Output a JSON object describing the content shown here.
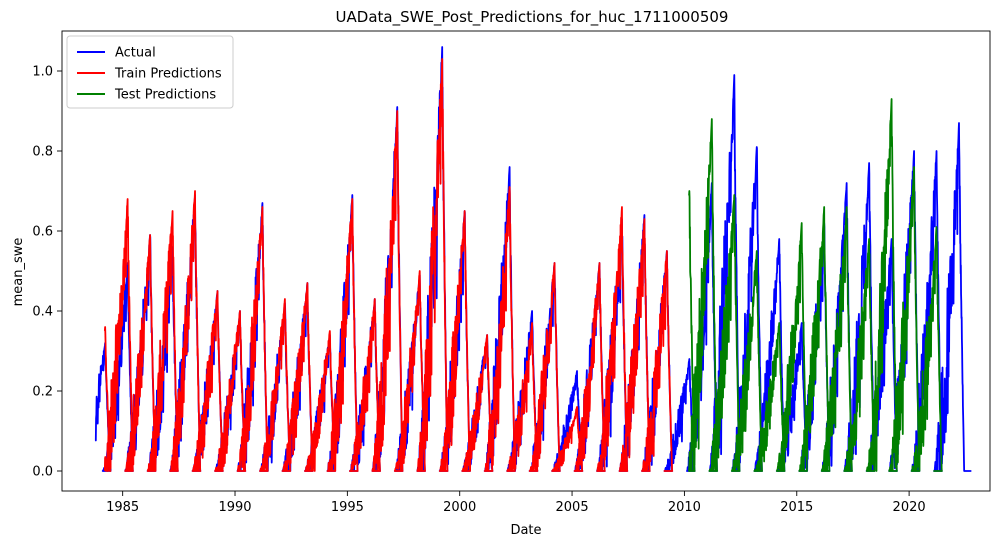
{
  "chart_data": {
    "type": "line",
    "title": "UAData_SWE_Post_Predictions_for_huc_1711000509",
    "xlabel": "Date",
    "ylabel": "mean_swe",
    "xlim": [
      1982.3,
      2023.6
    ],
    "ylim": [
      -0.05,
      1.1
    ],
    "xticks": [
      1985,
      1990,
      1995,
      2000,
      2005,
      2010,
      2015,
      2020
    ],
    "yticks": [
      0.0,
      0.2,
      0.4,
      0.6,
      0.8,
      1.0
    ],
    "ytick_labels": [
      "0.0",
      "0.2",
      "0.4",
      "0.6",
      "0.8",
      "1.0"
    ],
    "grid": false,
    "legend": "top-left",
    "peak_years": [
      1984,
      1985,
      1986,
      1987,
      1988,
      1989,
      1990,
      1991,
      1992,
      1993,
      1994,
      1995,
      1996,
      1997,
      1998,
      1999,
      2000,
      2001,
      2002,
      2003,
      2004,
      2005,
      2006,
      2007,
      2008,
      2009,
      2010,
      2011,
      2012,
      2013,
      2014,
      2015,
      2016,
      2017,
      2018,
      2019,
      2020,
      2021,
      2022
    ],
    "series": [
      {
        "name": "Actual",
        "color": "#0000ff",
        "x_range": [
          1983.8,
          2022.8
        ],
        "peaks": [
          0.32,
          0.52,
          0.59,
          0.56,
          0.69,
          0.45,
          0.4,
          0.67,
          0.42,
          0.47,
          0.34,
          0.69,
          0.43,
          0.91,
          0.49,
          1.06,
          0.65,
          0.34,
          0.76,
          0.4,
          0.52,
          0.25,
          0.52,
          0.63,
          0.64,
          0.55,
          0.28,
          0.72,
          0.99,
          0.81,
          0.58,
          0.37,
          0.62,
          0.72,
          0.77,
          0.58,
          0.8,
          0.8,
          0.87
        ]
      },
      {
        "name": "Train Predictions",
        "color": "#ff0000",
        "x_range": [
          1984.2,
          2009.9
        ],
        "peaks": [
          0.36,
          0.68,
          0.59,
          0.65,
          0.7,
          0.45,
          0.4,
          0.66,
          0.43,
          0.47,
          0.35,
          0.68,
          0.43,
          0.9,
          0.5,
          1.03,
          0.65,
          0.34,
          0.71,
          0.37,
          0.52,
          0.16,
          0.52,
          0.66,
          0.63,
          0.55
        ]
      },
      {
        "name": "Test Predictions",
        "color": "#008000",
        "x_range": [
          2010.2,
          2022.8
        ],
        "peaks": [
          0.7,
          0.88,
          0.69,
          0.55,
          0.37,
          0.62,
          0.66,
          0.66,
          0.58,
          0.93,
          0.76,
          0.61
        ]
      }
    ]
  }
}
